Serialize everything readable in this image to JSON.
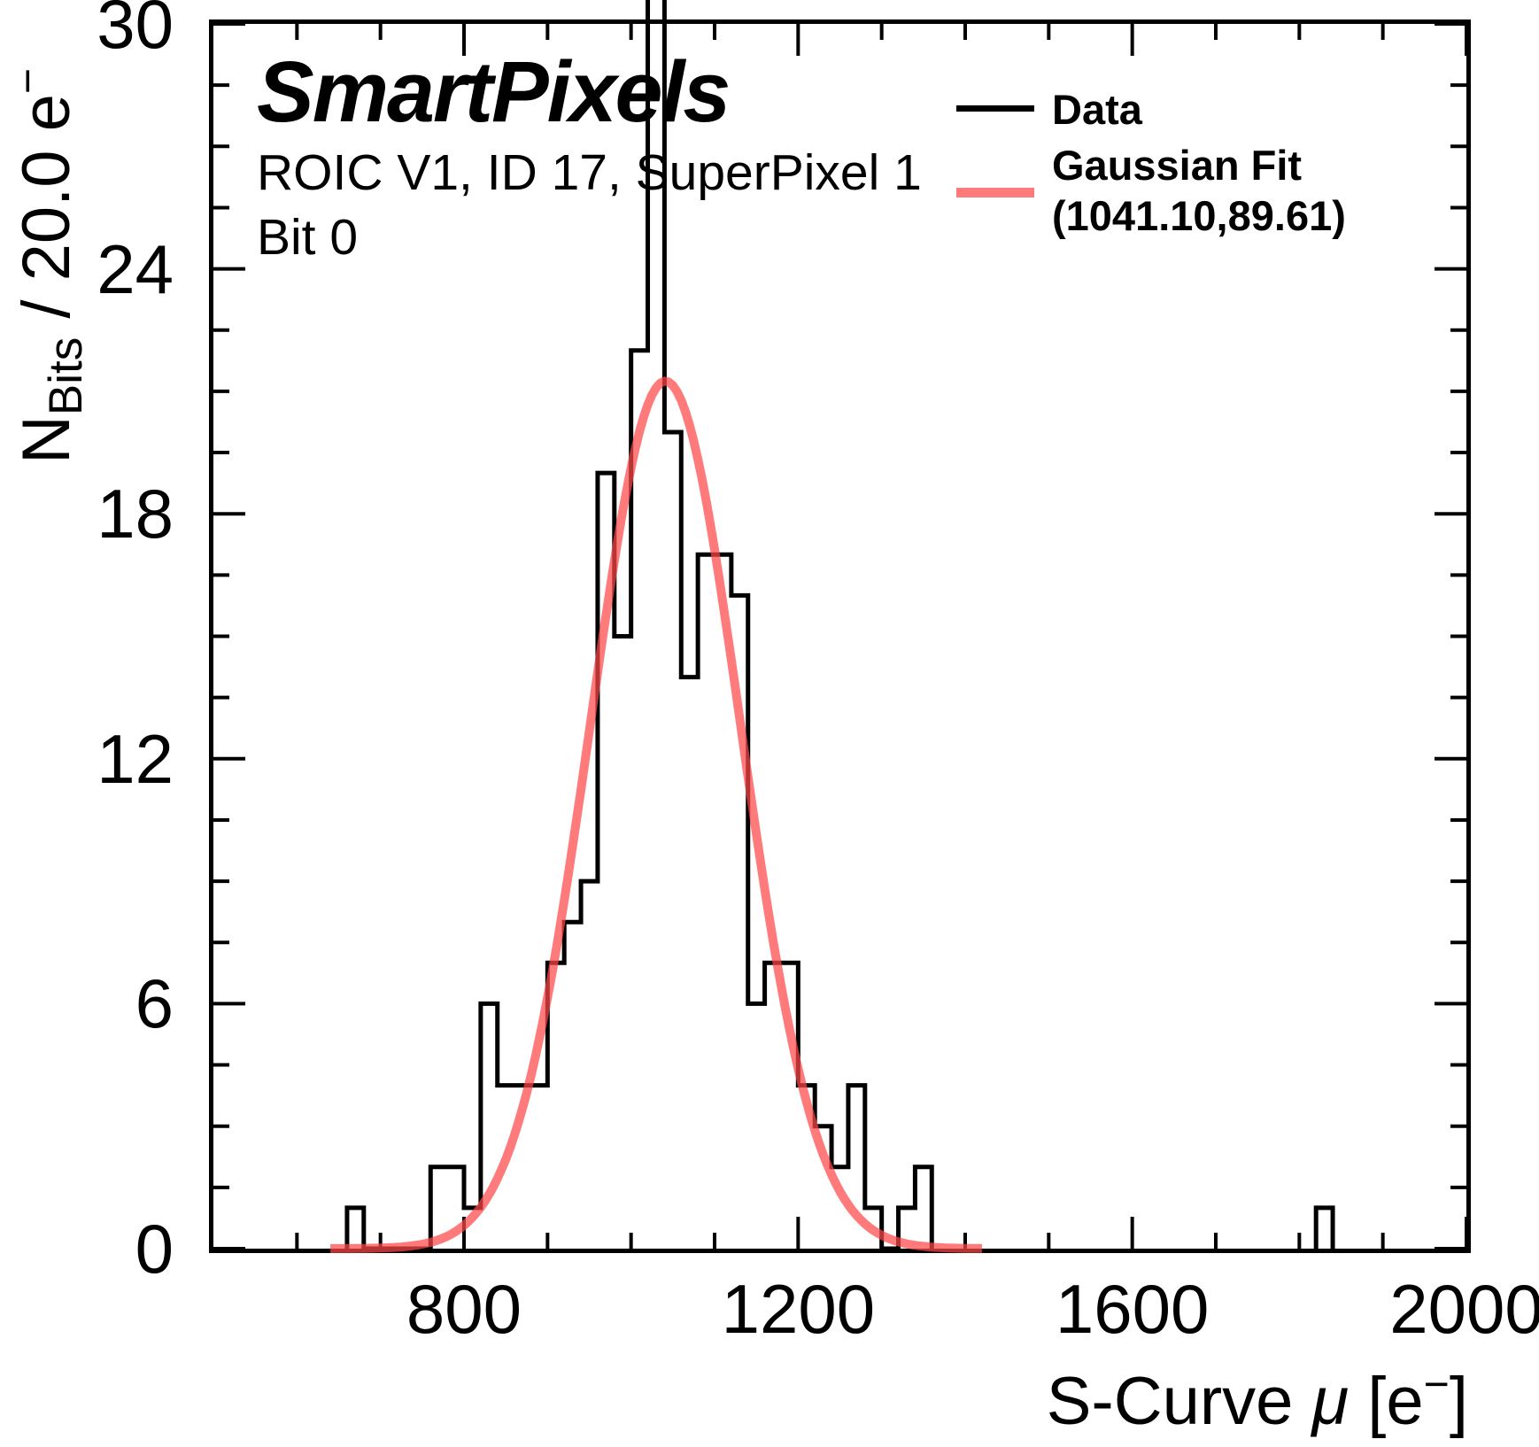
{
  "title": {
    "brand": "SmartPixels",
    "line1": "ROIC V1, ID 17, SuperPixel 1",
    "line2": "Bit 0"
  },
  "legend": {
    "entries": [
      {
        "label": "Data",
        "color": "#000000"
      },
      {
        "label": "Gaussian Fit",
        "label2": "(1041.10,89.61)",
        "color": "#ff4646",
        "opacity": 0.72
      }
    ]
  },
  "x_axis": {
    "label_pre": "S-Curve ",
    "label_mu": "μ",
    "label_mid": " [e",
    "label_sup": "−",
    "label_post": "]",
    "major_ticks": [
      800,
      1200,
      1600,
      2000
    ],
    "minor_ticks": [
      600,
      700,
      900,
      1000,
      1100,
      1300,
      1400,
      1500,
      1700,
      1800,
      1900
    ],
    "range": [
      500,
      2000
    ]
  },
  "y_axis": {
    "label_n": "N",
    "label_sub": "Bits",
    "label_mid": " / 20.0 e",
    "label_sup": "−",
    "major_ticks": [
      0,
      6,
      12,
      18,
      24,
      30
    ],
    "minor_ticks": [
      1.5,
      3,
      4.5,
      7.5,
      9,
      10.5,
      13.5,
      15,
      16.5,
      19.5,
      21,
      22.5,
      25.5,
      27,
      28.5
    ],
    "range": [
      0,
      30
    ]
  },
  "chart_data": {
    "type": "bar",
    "subtype": "step-histogram",
    "title": "SmartPixels  ROIC V1, ID 17, SuperPixel 1, Bit 0",
    "xlabel": "S-Curve μ [e−]",
    "ylabel": "N_Bits / 20.0 e−",
    "bin_width": 20,
    "x_range": [
      500,
      2000
    ],
    "y_range": [
      0,
      30
    ],
    "grid": false,
    "legend_position": "upper right",
    "segments": [
      {
        "start": 660,
        "counts": [
          1,
          0,
          0,
          0,
          0,
          2,
          2,
          1,
          6,
          4,
          4,
          4,
          7,
          8,
          9,
          19,
          15,
          22,
          31,
          20,
          14,
          17,
          17,
          16,
          6,
          7,
          7,
          4,
          3,
          2,
          4,
          1,
          0,
          1,
          2
        ]
      },
      {
        "start": 1820,
        "counts": [
          1
        ]
      }
    ],
    "peak_bin_clipped_above": 30,
    "fit": {
      "type": "gaussian",
      "mu": 1041.1,
      "sigma": 89.61,
      "peak": 21.25,
      "draw_range": [
        640,
        1420
      ]
    },
    "colors": {
      "data": "#000000",
      "fit": "#ff4646",
      "fit_opacity": 0.72
    },
    "tick_style": {
      "major_len": 36,
      "minor_len": 18,
      "width": 4,
      "direction": "in",
      "all_four_sides": true
    }
  }
}
